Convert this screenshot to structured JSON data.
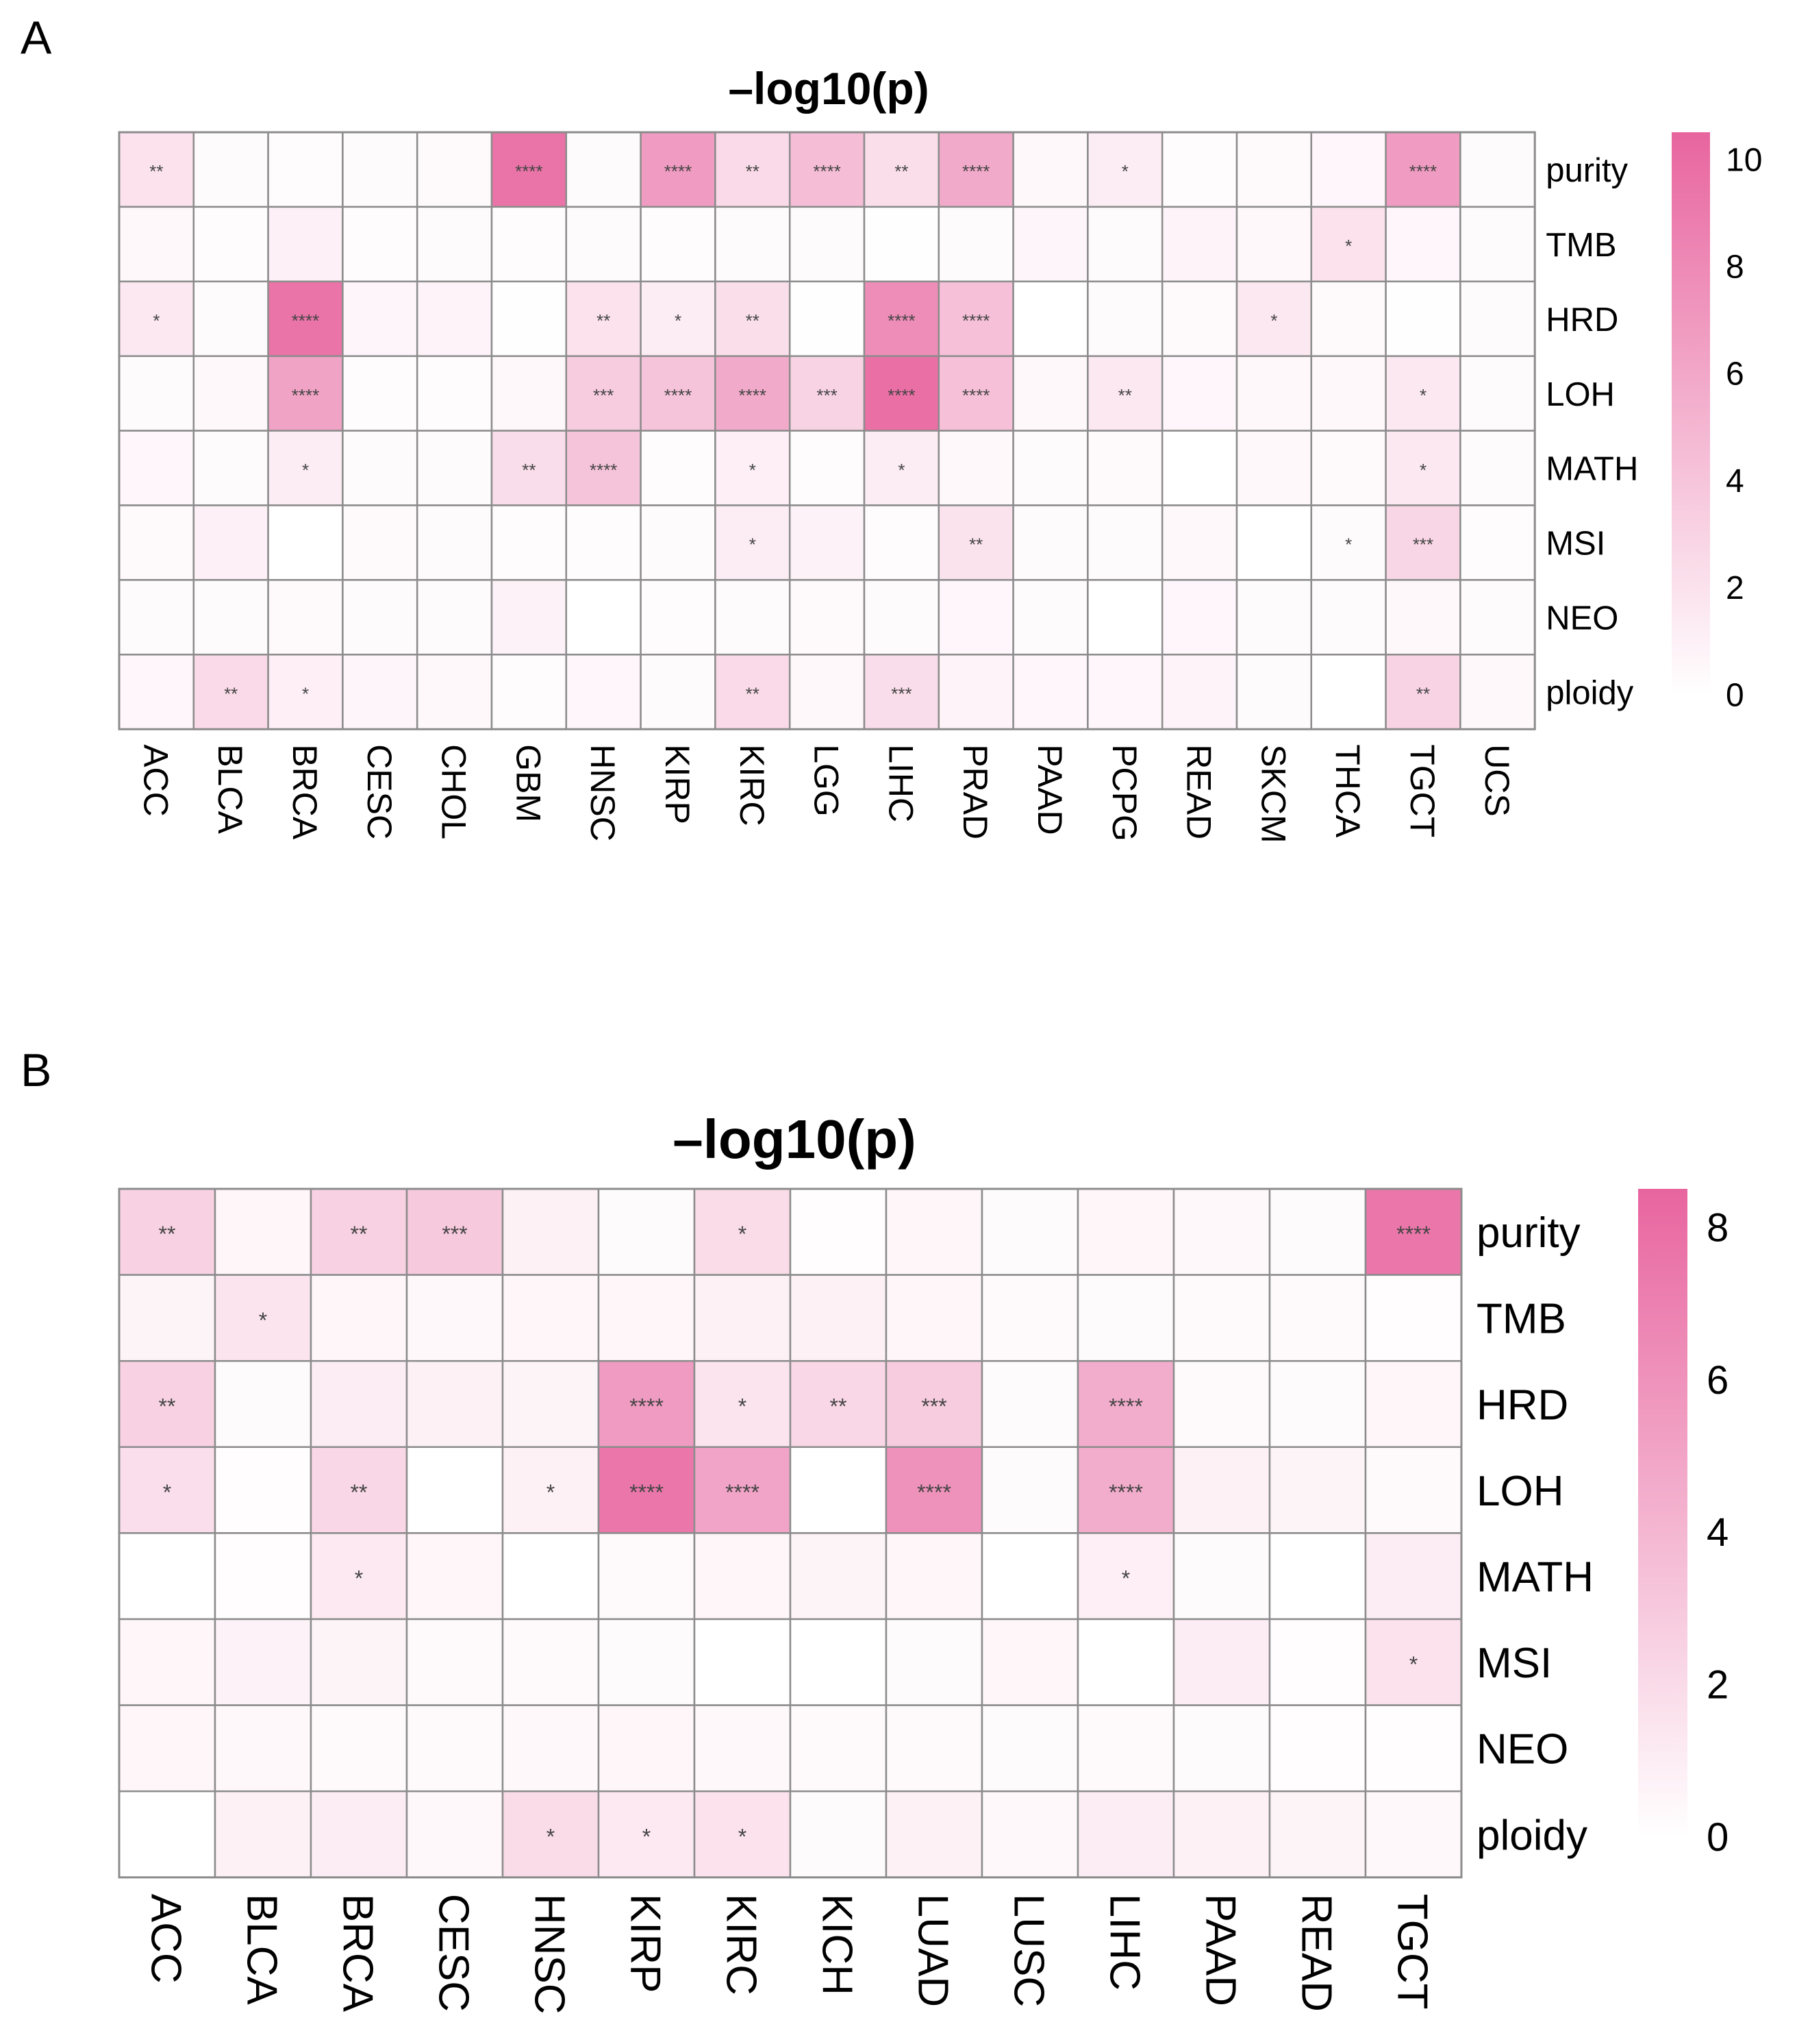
{
  "panels": [
    {
      "letter": "A"
    },
    {
      "letter": "B"
    }
  ],
  "chart_data": [
    {
      "type": "heatmap",
      "title": "–log10(p)",
      "rows": [
        "purity",
        "TMB",
        "HRD",
        "LOH",
        "MATH",
        "MSI",
        "NEO",
        "ploidy"
      ],
      "columns": [
        "ACC",
        "BLCA",
        "BRCA",
        "CESC",
        "CHOL",
        "GBM",
        "HNSC",
        "KIRP",
        "KIRC",
        "LGG",
        "LIHC",
        "PRAD",
        "PAAD",
        "PCPG",
        "READ",
        "SKCM",
        "THCA",
        "TGCT",
        "UCS"
      ],
      "values": [
        [
          2.0,
          0.3,
          0.2,
          0.3,
          0.4,
          9.5,
          0.3,
          6.8,
          2.5,
          4.5,
          2.2,
          5.8,
          0.5,
          1.3,
          0.2,
          0.4,
          0.6,
          6.8,
          0.3
        ],
        [
          0.5,
          0.2,
          1.0,
          0.2,
          0.3,
          0.2,
          0.3,
          0.2,
          0.3,
          0.3,
          0.1,
          0.3,
          0.7,
          0.3,
          0.8,
          0.5,
          2.0,
          0.6,
          0.3
        ],
        [
          1.6,
          0.3,
          9.5,
          0.7,
          0.8,
          0.1,
          2.0,
          1.3,
          2.2,
          0.1,
          7.8,
          4.3,
          0.0,
          0.3,
          0.4,
          1.6,
          0.4,
          0.1,
          0.3
        ],
        [
          0.3,
          0.5,
          6.3,
          0.2,
          0.2,
          0.5,
          3.5,
          4.0,
          5.8,
          3.0,
          9.8,
          4.3,
          0.5,
          1.6,
          0.6,
          0.5,
          0.5,
          1.6,
          0.3
        ],
        [
          0.6,
          0.3,
          1.3,
          0.3,
          0.3,
          2.3,
          4.0,
          0.2,
          1.1,
          0.2,
          1.2,
          0.5,
          0.3,
          0.4,
          0.0,
          0.5,
          0.4,
          1.6,
          0.3
        ],
        [
          0.4,
          1.0,
          0.0,
          0.4,
          0.3,
          0.2,
          0.2,
          0.3,
          1.3,
          0.9,
          0.2,
          1.9,
          0.3,
          0.3,
          0.5,
          0.0,
          0.3,
          2.8,
          0.2
        ],
        [
          0.3,
          0.3,
          0.4,
          0.3,
          0.3,
          0.9,
          0.0,
          0.2,
          0.3,
          0.4,
          0.3,
          0.6,
          0.3,
          0.0,
          0.6,
          0.3,
          0.3,
          0.5,
          0.3
        ],
        [
          0.6,
          2.5,
          1.1,
          0.7,
          0.5,
          0.2,
          0.6,
          0.3,
          2.5,
          0.5,
          2.3,
          0.8,
          0.6,
          0.6,
          0.8,
          0.3,
          0.0,
          3.0,
          0.5
        ]
      ],
      "annotations": [
        [
          "**",
          "",
          "",
          "",
          "",
          "****",
          "",
          "****",
          "**",
          "****",
          "**",
          "****",
          "",
          "*",
          "",
          "",
          "",
          "****",
          ""
        ],
        [
          "",
          "",
          "",
          "",
          "",
          "",
          "",
          "",
          "",
          "",
          "",
          "",
          "",
          "",
          "",
          "",
          "*",
          "",
          ""
        ],
        [
          "*",
          "",
          "****",
          "",
          "",
          "",
          "**",
          "*",
          "**",
          "",
          "****",
          "****",
          "",
          "",
          "",
          "*",
          "",
          "",
          ""
        ],
        [
          "",
          "",
          "****",
          "",
          "",
          "",
          "***",
          "****",
          "****",
          "***",
          "****",
          "****",
          "",
          "**",
          "",
          "",
          "",
          "*",
          ""
        ],
        [
          "",
          "",
          "*",
          "",
          "",
          "**",
          "****",
          "",
          "*",
          "",
          "*",
          "",
          "",
          "",
          "",
          "",
          "",
          "*",
          ""
        ],
        [
          "",
          "",
          "",
          "",
          "",
          "",
          "",
          "",
          "*",
          "",
          "",
          "**",
          "",
          "",
          "",
          "",
          "*",
          "***",
          ""
        ],
        [
          "",
          "",
          "",
          "",
          "",
          "",
          "",
          "",
          "",
          "",
          "",
          "",
          "",
          "",
          "",
          "",
          "",
          "",
          ""
        ],
        [
          "",
          "**",
          "*",
          "",
          "",
          "",
          "",
          "",
          "**",
          "",
          "***",
          "",
          "",
          "",
          "",
          "",
          "",
          "**",
          ""
        ]
      ],
      "color_range": [
        0,
        10.5
      ],
      "colorbar_ticks": [
        "10",
        "8",
        "6",
        "4",
        "2",
        "0"
      ],
      "colorbar_values": [
        10,
        8,
        6,
        4,
        2,
        0
      ],
      "colors": {
        "low": "#ffffff",
        "high": "#e8659f",
        "grid": "#8c8c8c"
      }
    },
    {
      "type": "heatmap",
      "title": "–log10(p)",
      "rows": [
        "purity",
        "TMB",
        "HRD",
        "LOH",
        "MATH",
        "MSI",
        "NEO",
        "ploidy"
      ],
      "columns": [
        "ACC",
        "BLCA",
        "BRCA",
        "CESC",
        "HNSC",
        "KIRP",
        "KIRC",
        "KICH",
        "LUAD",
        "LUSC",
        "LIHC",
        "PAAD",
        "READ",
        "TGCT"
      ],
      "values": [
        [
          2.5,
          0.5,
          2.5,
          3.0,
          0.8,
          0.2,
          2.0,
          0.1,
          0.5,
          0.2,
          0.5,
          0.4,
          0.2,
          7.5
        ],
        [
          0.6,
          1.5,
          0.5,
          0.4,
          0.5,
          0.5,
          0.8,
          0.8,
          0.5,
          0.3,
          0.2,
          0.3,
          0.3,
          0.1
        ],
        [
          2.5,
          0.2,
          1.0,
          0.8,
          0.6,
          5.5,
          1.5,
          2.2,
          2.8,
          0.2,
          4.5,
          0.3,
          0.2,
          0.5
        ],
        [
          1.8,
          0.1,
          2.2,
          0.0,
          0.8,
          7.5,
          5.0,
          0.0,
          6.0,
          0.2,
          4.5,
          0.8,
          0.6,
          0.3
        ],
        [
          0.0,
          0.1,
          1.2,
          0.5,
          0.0,
          0.3,
          0.5,
          0.6,
          0.5,
          0.0,
          0.9,
          0.2,
          0.0,
          1.0
        ],
        [
          0.5,
          0.7,
          0.6,
          0.3,
          0.3,
          0.2,
          0.0,
          0.0,
          0.2,
          0.5,
          0.0,
          1.0,
          0.1,
          1.6
        ],
        [
          0.5,
          0.4,
          0.3,
          0.3,
          0.4,
          0.5,
          0.4,
          0.3,
          0.3,
          0.2,
          0.3,
          0.2,
          0.1,
          0.1
        ],
        [
          0.0,
          0.8,
          1.0,
          0.4,
          2.0,
          1.2,
          1.6,
          0.2,
          0.8,
          0.4,
          1.0,
          0.8,
          0.6,
          0.4
        ]
      ],
      "annotations": [
        [
          "**",
          "",
          "**",
          "***",
          "",
          "",
          "*",
          "",
          "",
          "",
          "",
          "",
          "",
          "****"
        ],
        [
          "",
          "*",
          "",
          "",
          "",
          "",
          "",
          "",
          "",
          "",
          "",
          "",
          "",
          ""
        ],
        [
          "**",
          "",
          "",
          "",
          "",
          "****",
          "*",
          "**",
          "***",
          "",
          "****",
          "",
          "",
          ""
        ],
        [
          "*",
          "",
          "**",
          "",
          "*",
          "****",
          "****",
          "",
          "****",
          "",
          "****",
          "",
          "",
          ""
        ],
        [
          "",
          "",
          "*",
          "",
          "",
          "",
          "",
          "",
          "",
          "",
          "*",
          "",
          "",
          ""
        ],
        [
          "",
          "",
          "",
          "",
          "",
          "",
          "",
          "",
          "",
          "",
          "",
          "",
          "",
          "*"
        ],
        [
          "",
          "",
          "",
          "",
          "",
          "",
          "",
          "",
          "",
          "",
          "",
          "",
          "",
          ""
        ],
        [
          "",
          "",
          "",
          "",
          "*",
          "*",
          "*",
          "",
          "",
          "",
          "",
          "",
          "",
          ""
        ]
      ],
      "color_range": [
        0,
        8.5
      ],
      "colorbar_ticks": [
        "8",
        "6",
        "4",
        "2",
        "0"
      ],
      "colorbar_values": [
        8,
        6,
        4,
        2,
        0
      ],
      "colors": {
        "low": "#ffffff",
        "high": "#e8659f",
        "grid": "#8c8c8c"
      }
    }
  ]
}
